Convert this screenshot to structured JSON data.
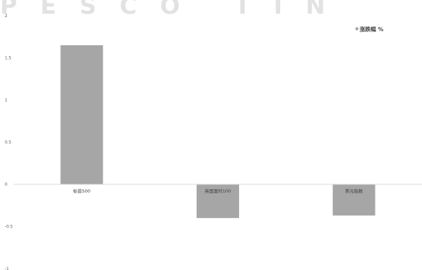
{
  "watermark": "PESCO TIN",
  "chart_data": {
    "type": "bar",
    "categories": [
      "标普500",
      "英国富时100",
      "美元指数"
    ],
    "series": [
      {
        "name": "涨跌幅 %",
        "values": [
          1.65,
          -0.4,
          -0.37
        ],
        "color": "#a6a6a6"
      }
    ],
    "ylim": [
      -1,
      2
    ],
    "yticks": [
      -1,
      -0.5,
      0,
      0.5,
      1,
      1.5,
      2
    ],
    "ytick_labels": [
      "-1",
      "-0.5",
      "0",
      "0.5",
      "1",
      "1.5",
      "2"
    ],
    "grid": false,
    "legend": "top-right",
    "title": "",
    "xlabel": "",
    "ylabel": ""
  }
}
